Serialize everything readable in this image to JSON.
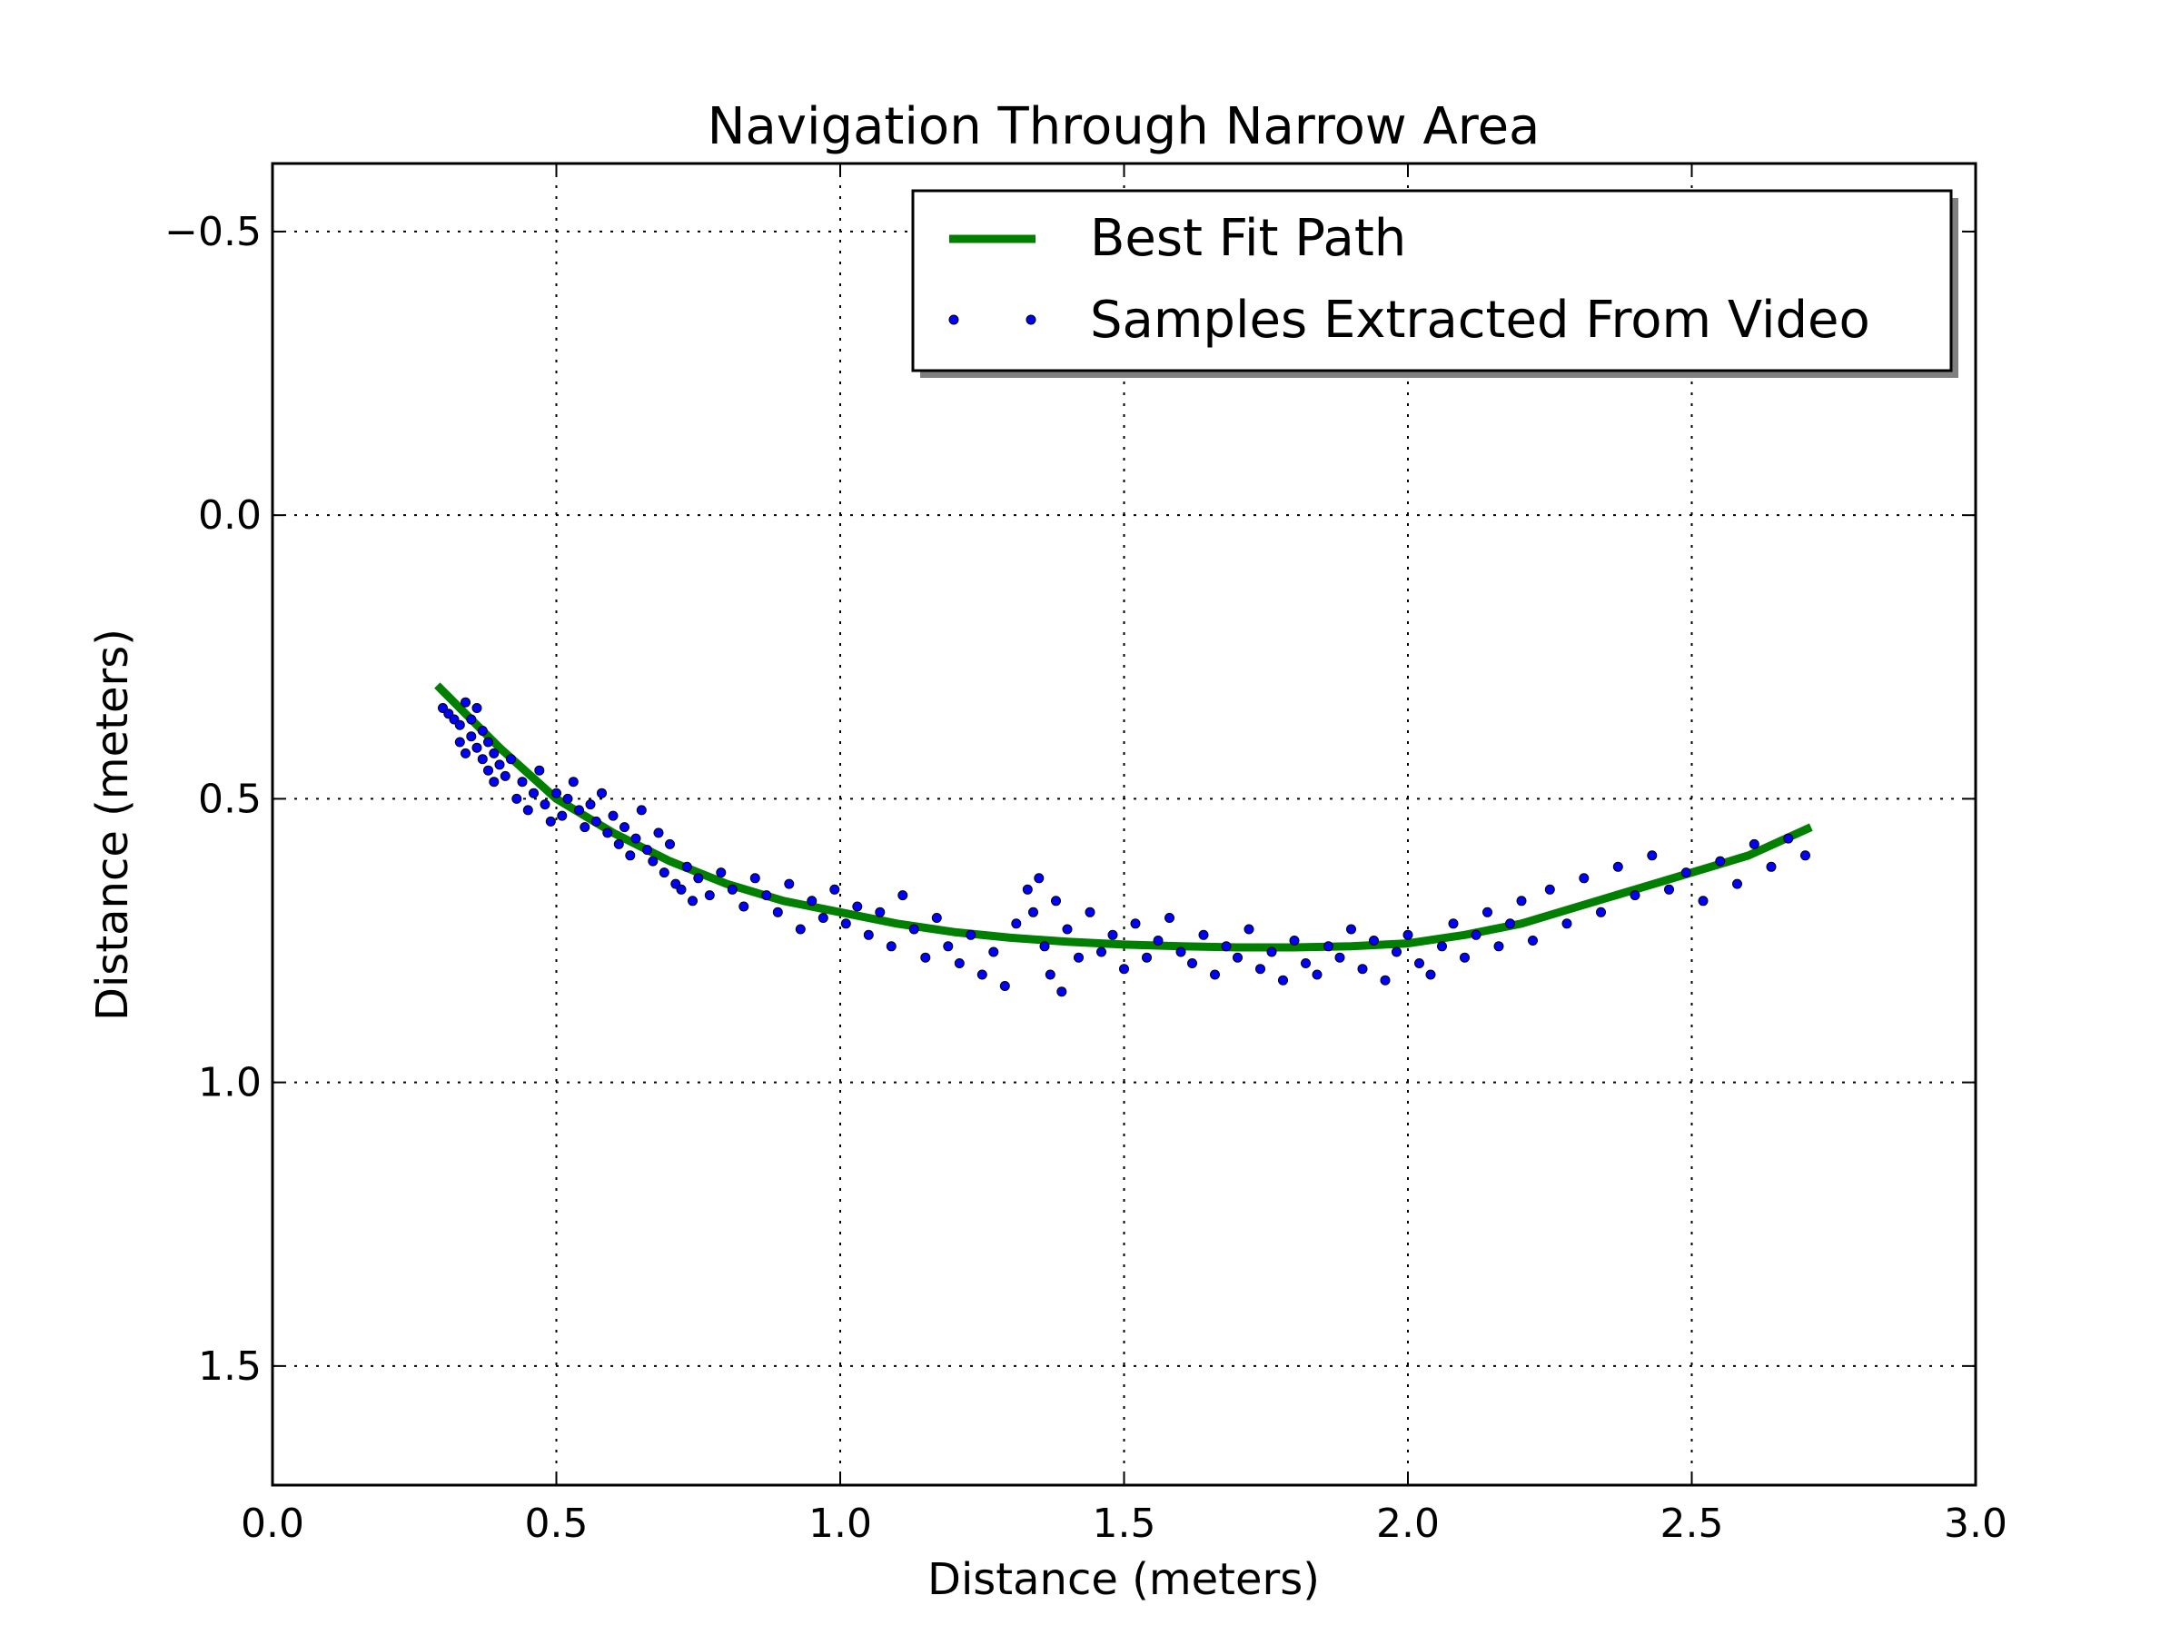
{
  "chart_data": {
    "type": "scatter",
    "title": "Navigation Through Narrow Area",
    "xlabel": "Distance (meters)",
    "ylabel": "Distance (meters)",
    "xlim": [
      0.0,
      3.0
    ],
    "ylim": [
      -0.62,
      1.71
    ],
    "y_inverted": true,
    "grid": true,
    "legend_position": "top-right",
    "x_ticks": [
      "0.0",
      "0.5",
      "1.0",
      "1.5",
      "2.0",
      "2.5",
      "3.0"
    ],
    "y_ticks": [
      "−0.5",
      "0.0",
      "0.5",
      "1.0",
      "1.5"
    ],
    "series": [
      {
        "name": "Best Fit Path",
        "kind": "line",
        "color": "#007f00",
        "x": [
          0.29,
          0.4,
          0.5,
          0.6,
          0.7,
          0.8,
          0.9,
          1.0,
          1.1,
          1.2,
          1.3,
          1.4,
          1.5,
          1.6,
          1.7,
          1.8,
          1.9,
          2.0,
          2.1,
          2.2,
          2.3,
          2.4,
          2.5,
          2.6,
          2.71
        ],
        "y": [
          0.3,
          0.41,
          0.5,
          0.56,
          0.61,
          0.65,
          0.68,
          0.7,
          0.72,
          0.735,
          0.745,
          0.752,
          0.757,
          0.76,
          0.762,
          0.762,
          0.76,
          0.755,
          0.74,
          0.72,
          0.69,
          0.66,
          0.63,
          0.6,
          0.55
        ]
      },
      {
        "name": "Samples Extracted From Video",
        "kind": "scatter",
        "color": "#0000ff",
        "x": [
          0.3,
          0.31,
          0.32,
          0.33,
          0.33,
          0.34,
          0.34,
          0.35,
          0.35,
          0.36,
          0.36,
          0.37,
          0.37,
          0.38,
          0.38,
          0.39,
          0.39,
          0.4,
          0.41,
          0.42,
          0.43,
          0.44,
          0.45,
          0.46,
          0.47,
          0.48,
          0.49,
          0.5,
          0.51,
          0.52,
          0.53,
          0.54,
          0.55,
          0.56,
          0.57,
          0.58,
          0.59,
          0.6,
          0.61,
          0.62,
          0.63,
          0.64,
          0.65,
          0.66,
          0.67,
          0.68,
          0.69,
          0.7,
          0.71,
          0.72,
          0.73,
          0.74,
          0.75,
          0.77,
          0.79,
          0.81,
          0.83,
          0.85,
          0.87,
          0.89,
          0.91,
          0.93,
          0.95,
          0.97,
          0.99,
          1.01,
          1.03,
          1.05,
          1.07,
          1.09,
          1.11,
          1.13,
          1.15,
          1.17,
          1.19,
          1.21,
          1.23,
          1.25,
          1.27,
          1.29,
          1.31,
          1.33,
          1.34,
          1.35,
          1.36,
          1.37,
          1.38,
          1.39,
          1.4,
          1.42,
          1.44,
          1.46,
          1.48,
          1.5,
          1.52,
          1.54,
          1.56,
          1.58,
          1.6,
          1.62,
          1.64,
          1.66,
          1.68,
          1.7,
          1.72,
          1.74,
          1.76,
          1.78,
          1.8,
          1.82,
          1.84,
          1.86,
          1.88,
          1.9,
          1.92,
          1.94,
          1.96,
          1.98,
          2.0,
          2.02,
          2.04,
          2.06,
          2.08,
          2.1,
          2.12,
          2.14,
          2.16,
          2.18,
          2.2,
          2.22,
          2.25,
          2.28,
          2.31,
          2.34,
          2.37,
          2.4,
          2.43,
          2.46,
          2.49,
          2.52,
          2.55,
          2.58,
          2.61,
          2.64,
          2.67,
          2.7
        ],
        "y": [
          0.34,
          0.35,
          0.36,
          0.37,
          0.4,
          0.33,
          0.42,
          0.36,
          0.39,
          0.34,
          0.41,
          0.38,
          0.43,
          0.4,
          0.45,
          0.42,
          0.47,
          0.44,
          0.46,
          0.43,
          0.5,
          0.47,
          0.52,
          0.49,
          0.45,
          0.51,
          0.54,
          0.49,
          0.53,
          0.5,
          0.47,
          0.52,
          0.55,
          0.51,
          0.54,
          0.49,
          0.56,
          0.53,
          0.58,
          0.55,
          0.6,
          0.57,
          0.52,
          0.59,
          0.61,
          0.56,
          0.63,
          0.58,
          0.65,
          0.66,
          0.62,
          0.68,
          0.64,
          0.67,
          0.63,
          0.66,
          0.69,
          0.64,
          0.67,
          0.7,
          0.65,
          0.73,
          0.68,
          0.71,
          0.66,
          0.72,
          0.69,
          0.74,
          0.7,
          0.76,
          0.67,
          0.73,
          0.78,
          0.71,
          0.76,
          0.79,
          0.74,
          0.81,
          0.77,
          0.83,
          0.72,
          0.66,
          0.7,
          0.64,
          0.76,
          0.81,
          0.68,
          0.84,
          0.73,
          0.78,
          0.7,
          0.77,
          0.74,
          0.8,
          0.72,
          0.78,
          0.75,
          0.71,
          0.77,
          0.79,
          0.74,
          0.81,
          0.76,
          0.78,
          0.73,
          0.8,
          0.77,
          0.82,
          0.75,
          0.79,
          0.81,
          0.76,
          0.78,
          0.73,
          0.8,
          0.75,
          0.82,
          0.77,
          0.74,
          0.79,
          0.81,
          0.76,
          0.72,
          0.78,
          0.74,
          0.7,
          0.76,
          0.72,
          0.68,
          0.75,
          0.66,
          0.72,
          0.64,
          0.7,
          0.62,
          0.67,
          0.6,
          0.66,
          0.63,
          0.68,
          0.61,
          0.65,
          0.58,
          0.62,
          0.57,
          0.6
        ]
      }
    ]
  }
}
